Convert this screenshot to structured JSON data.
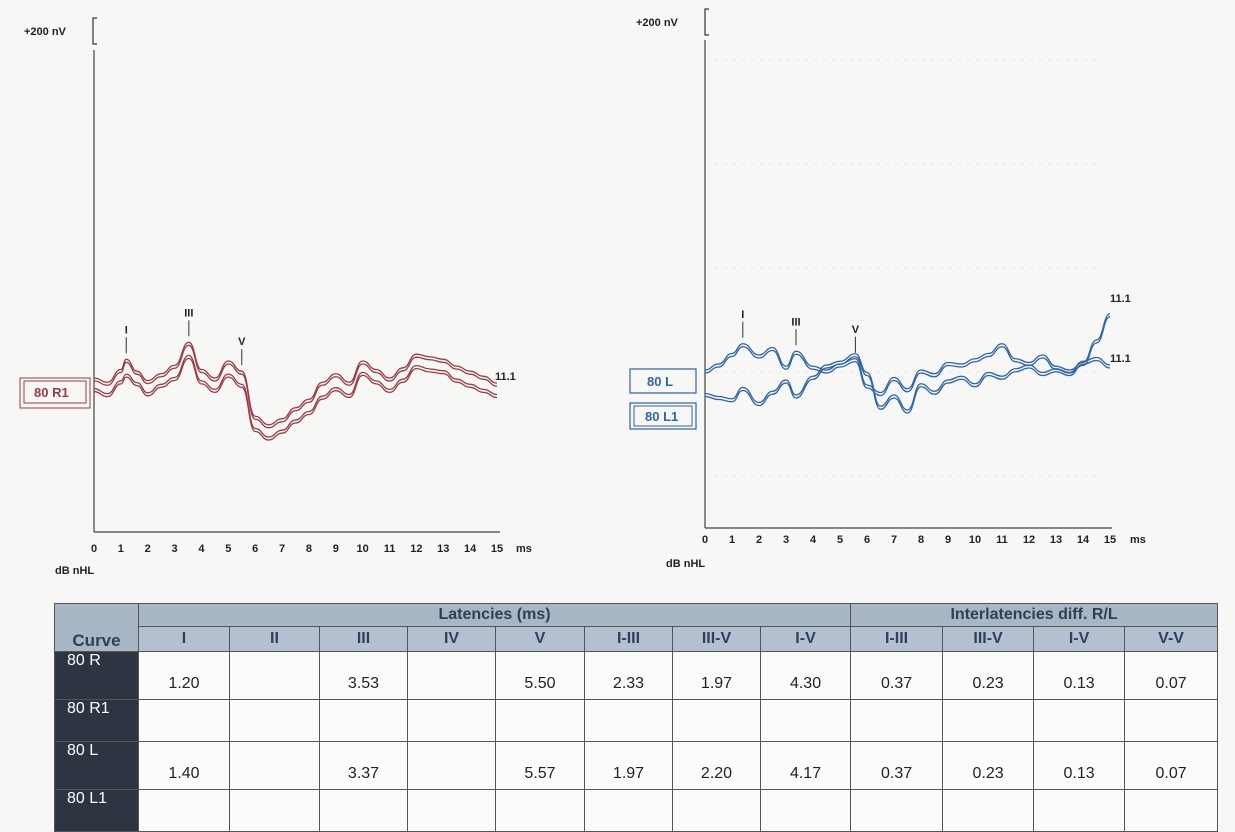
{
  "colors": {
    "right_ear": "#9b3b44",
    "left_ear": "#2f64a8",
    "table_header_bg": "#a9b6c6",
    "table_row_label_bg": "#2d3442"
  },
  "charts": [
    {
      "scale_label": "+200 nV",
      "x_ticks": [
        "0",
        "1",
        "2",
        "3",
        "4",
        "5",
        "6",
        "7",
        "8",
        "9",
        "10",
        "11",
        "12",
        "13",
        "14",
        "15"
      ],
      "x_unit": "ms",
      "x_label": "dB nHL",
      "curve_tags": [
        "80 R1"
      ],
      "end_labels": [
        "11.1"
      ],
      "peak_labels": [
        "I",
        "III",
        "V"
      ]
    },
    {
      "scale_label": "+200 nV",
      "x_ticks": [
        "0",
        "1",
        "2",
        "3",
        "4",
        "5",
        "6",
        "7",
        "8",
        "9",
        "10",
        "11",
        "12",
        "13",
        "14",
        "15"
      ],
      "x_unit": "ms",
      "x_label": "dB nHL",
      "curve_tags": [
        "80 L",
        "80 L1"
      ],
      "end_labels": [
        "11.1",
        "11.1"
      ],
      "peak_labels": [
        "I",
        "III",
        "V"
      ]
    }
  ],
  "chart_data": [
    {
      "type": "line",
      "xlim": [
        0,
        15
      ],
      "x_unit": "ms",
      "series": [
        {
          "name": "80 R",
          "x": [
            0,
            0.5,
            1,
            1.2,
            1.6,
            2,
            2.5,
            3,
            3.53,
            4,
            4.5,
            5,
            5.5,
            6,
            6.5,
            7,
            7.5,
            8,
            8.5,
            9,
            9.5,
            10,
            10.5,
            11,
            11.5,
            12,
            12.5,
            13,
            13.5,
            14,
            14.5,
            15
          ],
          "y": [
            0,
            -5,
            10,
            22,
            8,
            -3,
            5,
            15,
            42,
            10,
            0,
            20,
            8,
            -45,
            -55,
            -48,
            -35,
            -25,
            -5,
            5,
            -5,
            20,
            10,
            0,
            12,
            28,
            25,
            22,
            14,
            8,
            2,
            -6
          ]
        },
        {
          "name": "80 R1",
          "x": [
            0,
            0.5,
            1,
            1.2,
            1.6,
            2,
            2.5,
            3,
            3.53,
            4,
            4.5,
            5,
            5.5,
            6,
            6.5,
            7,
            7.5,
            8,
            8.5,
            9,
            9.5,
            10,
            10.5,
            11,
            11.5,
            12,
            12.5,
            13,
            13.5,
            14,
            14.5,
            15
          ],
          "y": [
            -3,
            -9,
            6,
            14,
            4,
            -8,
            2,
            10,
            36,
            6,
            -4,
            14,
            2,
            -50,
            -60,
            -52,
            -40,
            -30,
            -12,
            -2,
            -10,
            16,
            6,
            -4,
            8,
            24,
            20,
            18,
            8,
            2,
            -4,
            -10
          ]
        }
      ],
      "peaks": [
        {
          "label": "I",
          "x": 1.2
        },
        {
          "label": "III",
          "x": 3.53
        },
        {
          "label": "V",
          "x": 5.5
        }
      ]
    },
    {
      "type": "line",
      "xlim": [
        0,
        15
      ],
      "x_unit": "ms",
      "series": [
        {
          "name": "80 L",
          "x": [
            0,
            0.5,
            1,
            1.4,
            2,
            2.5,
            3,
            3.37,
            4,
            4.5,
            5,
            5.57,
            6,
            6.5,
            7,
            7.5,
            8,
            8.5,
            9,
            9.5,
            10,
            10.5,
            11,
            11.5,
            12,
            12.5,
            13,
            13.5,
            14,
            14.5,
            15
          ],
          "y": [
            0,
            8,
            22,
            35,
            20,
            30,
            5,
            25,
            5,
            0,
            8,
            15,
            -20,
            -30,
            -10,
            -25,
            0,
            -5,
            10,
            8,
            15,
            22,
            35,
            15,
            10,
            20,
            5,
            0,
            10,
            40,
            75
          ]
        },
        {
          "name": "80 L1",
          "x": [
            0,
            0.5,
            1,
            1.4,
            2,
            2.5,
            3,
            3.37,
            4,
            4.5,
            5,
            5.57,
            6,
            6.5,
            7,
            7.5,
            8,
            8.5,
            9,
            9.5,
            10,
            10.5,
            11,
            11.5,
            12,
            12.5,
            13,
            13.5,
            14,
            14.5,
            15
          ],
          "y": [
            -38,
            -42,
            -45,
            -30,
            -50,
            -35,
            -20,
            -40,
            -15,
            0,
            5,
            15,
            -10,
            -55,
            -40,
            -60,
            -25,
            -35,
            -20,
            -15,
            -25,
            -10,
            -15,
            -5,
            0,
            -10,
            -5,
            -10,
            5,
            10,
            0
          ]
        }
      ],
      "peaks": [
        {
          "label": "I",
          "x": 1.4
        },
        {
          "label": "III",
          "x": 3.37
        },
        {
          "label": "V",
          "x": 5.57
        }
      ]
    }
  ],
  "table": {
    "group_latencies": "Latencies (ms)",
    "group_inter": "Interlatencies diff. R/L",
    "curve_header": "Curve",
    "columns": [
      "I",
      "II",
      "III",
      "IV",
      "V",
      "I-III",
      "III-V",
      "I-V",
      "I-III",
      "III-V",
      "I-V",
      "V-V"
    ],
    "rows": [
      {
        "label": "80 R",
        "cells": [
          "1.20",
          "",
          "3.53",
          "",
          "5.50",
          "2.33",
          "1.97",
          "4.30",
          "0.37",
          "0.23",
          "0.13",
          "0.07"
        ]
      },
      {
        "label": "80 R1",
        "cells": [
          "",
          "",
          "",
          "",
          "",
          "",
          "",
          "",
          "",
          "",
          "",
          ""
        ]
      },
      {
        "label": "80 L",
        "cells": [
          "1.40",
          "",
          "3.37",
          "",
          "5.57",
          "1.97",
          "2.20",
          "4.17",
          "0.37",
          "0.23",
          "0.13",
          "0.07"
        ]
      },
      {
        "label": "80 L1",
        "cells": [
          "",
          "",
          "",
          "",
          "",
          "",
          "",
          "",
          "",
          "",
          "",
          ""
        ]
      }
    ]
  }
}
